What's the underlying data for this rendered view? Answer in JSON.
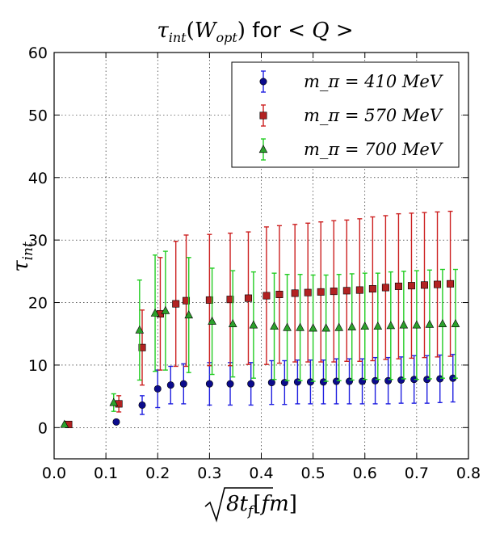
{
  "chart_data": {
    "type": "scatter",
    "title": "τ_int(W_opt) for < Q >",
    "xlabel": "√8t_f [fm]",
    "ylabel": "τ_int",
    "xlim": [
      0.0,
      0.8
    ],
    "ylim": [
      -5,
      60
    ],
    "xticks": [
      0.0,
      0.1,
      0.2,
      0.3,
      0.4,
      0.5,
      0.6,
      0.7,
      0.8
    ],
    "xtick_labels": [
      "0.0",
      "0.1",
      "0.2",
      "0.3",
      "0.4",
      "0.5",
      "0.6",
      "0.7",
      "0.8"
    ],
    "yticks": [
      0,
      10,
      20,
      30,
      40,
      50,
      60
    ],
    "ytick_labels": [
      "0",
      "10",
      "20",
      "30",
      "40",
      "50",
      "60"
    ],
    "grid": true,
    "legend_position": "top-right",
    "series": [
      {
        "name": "m_π = 410 MeV",
        "marker": "circle",
        "color": "#0b0b8c",
        "error_color": "#1f1fe0",
        "x": [
          0.12,
          0.17,
          0.2,
          0.225,
          0.25,
          0.3,
          0.34,
          0.38,
          0.42,
          0.445,
          0.47,
          0.495,
          0.52,
          0.545,
          0.57,
          0.595,
          0.62,
          0.645,
          0.67,
          0.695,
          0.72,
          0.745,
          0.77
        ],
        "y": [
          0.9,
          3.6,
          6.2,
          6.8,
          7.0,
          7.0,
          7.0,
          7.0,
          7.2,
          7.2,
          7.3,
          7.3,
          7.3,
          7.4,
          7.4,
          7.4,
          7.5,
          7.5,
          7.6,
          7.7,
          7.7,
          7.8,
          7.9
        ],
        "yerr": [
          0.0,
          1.5,
          3.0,
          3.0,
          3.2,
          3.4,
          3.4,
          3.4,
          3.5,
          3.5,
          3.5,
          3.5,
          3.5,
          3.6,
          3.6,
          3.6,
          3.7,
          3.7,
          3.7,
          3.8,
          3.8,
          3.8,
          3.8
        ]
      },
      {
        "name": "m_π = 570 MeV",
        "marker": "square",
        "color": "#b22222",
        "error_color": "#cc2020",
        "x": [
          0.028,
          0.125,
          0.17,
          0.205,
          0.235,
          0.255,
          0.3,
          0.34,
          0.375,
          0.41,
          0.435,
          0.465,
          0.49,
          0.515,
          0.54,
          0.565,
          0.59,
          0.615,
          0.64,
          0.665,
          0.69,
          0.715,
          0.74,
          0.765
        ],
        "y": [
          0.5,
          3.8,
          12.8,
          18.2,
          19.8,
          20.3,
          20.4,
          20.5,
          20.7,
          21.1,
          21.3,
          21.5,
          21.6,
          21.7,
          21.8,
          21.9,
          22.0,
          22.2,
          22.4,
          22.6,
          22.7,
          22.8,
          22.9,
          23.0
        ],
        "yerr": [
          0.0,
          1.3,
          6.0,
          9.0,
          10.0,
          10.5,
          10.5,
          10.6,
          10.6,
          11.0,
          11.0,
          11.0,
          11.1,
          11.2,
          11.3,
          11.3,
          11.4,
          11.5,
          11.5,
          11.6,
          11.6,
          11.6,
          11.6,
          11.6
        ]
      },
      {
        "name": "m_π = 700 MeV",
        "marker": "triangle",
        "color": "#2ca02c",
        "error_color": "#22cc22",
        "x": [
          0.02,
          0.115,
          0.165,
          0.195,
          0.215,
          0.26,
          0.305,
          0.345,
          0.385,
          0.425,
          0.45,
          0.475,
          0.5,
          0.525,
          0.55,
          0.575,
          0.6,
          0.625,
          0.65,
          0.675,
          0.7,
          0.725,
          0.75,
          0.775
        ],
        "y": [
          0.5,
          4.0,
          15.6,
          18.3,
          18.7,
          18.0,
          17.0,
          16.6,
          16.4,
          16.2,
          16.0,
          16.0,
          15.9,
          15.9,
          16.0,
          16.1,
          16.2,
          16.2,
          16.3,
          16.4,
          16.4,
          16.5,
          16.6,
          16.6
        ],
        "yerr": [
          0.0,
          1.4,
          8.0,
          9.3,
          9.5,
          9.2,
          8.5,
          8.5,
          8.5,
          8.5,
          8.5,
          8.5,
          8.5,
          8.5,
          8.5,
          8.5,
          8.5,
          8.5,
          8.6,
          8.6,
          8.7,
          8.7,
          8.7,
          8.7
        ]
      }
    ]
  }
}
